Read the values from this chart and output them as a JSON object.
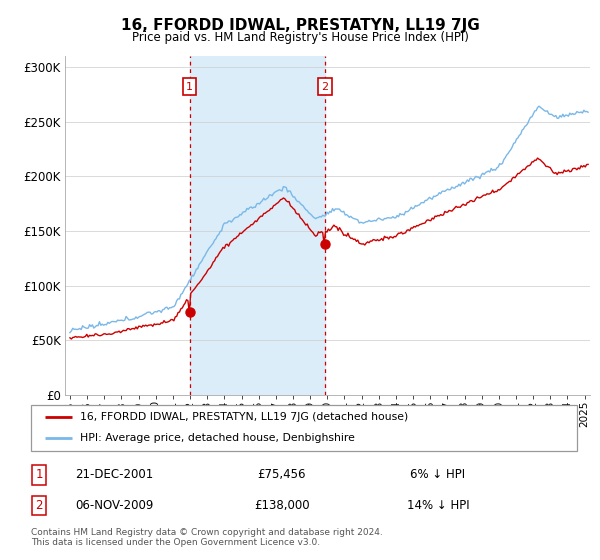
{
  "title": "16, FFORDD IDWAL, PRESTATYN, LL19 7JG",
  "subtitle": "Price paid vs. HM Land Registry's House Price Index (HPI)",
  "ylabel_ticks": [
    "£0",
    "£50K",
    "£100K",
    "£150K",
    "£200K",
    "£250K",
    "£300K"
  ],
  "ytick_values": [
    0,
    50000,
    100000,
    150000,
    200000,
    250000,
    300000
  ],
  "ylim": [
    0,
    310000
  ],
  "xlim_start": 1994.7,
  "xlim_end": 2025.3,
  "xtick_years": [
    1995,
    1996,
    1997,
    1998,
    1999,
    2000,
    2001,
    2002,
    2003,
    2004,
    2005,
    2006,
    2007,
    2008,
    2009,
    2010,
    2011,
    2012,
    2013,
    2014,
    2015,
    2016,
    2017,
    2018,
    2019,
    2020,
    2021,
    2022,
    2023,
    2024,
    2025
  ],
  "hpi_color": "#7ab8e8",
  "price_color": "#cc0000",
  "marker1_date": 2001.97,
  "marker1_price": 75456,
  "marker1_label": "1",
  "marker2_date": 2009.85,
  "marker2_price": 138000,
  "marker2_label": "2",
  "shaded_color": "#daedf8",
  "legend_line1": "16, FFORDD IDWAL, PRESTATYN, LL19 7JG (detached house)",
  "legend_line2": "HPI: Average price, detached house, Denbighshire",
  "table_row1_num": "1",
  "table_row1_date": "21-DEC-2001",
  "table_row1_price": "£75,456",
  "table_row1_hpi": "6% ↓ HPI",
  "table_row2_num": "2",
  "table_row2_date": "06-NOV-2009",
  "table_row2_price": "£138,000",
  "table_row2_hpi": "14% ↓ HPI",
  "footer": "Contains HM Land Registry data © Crown copyright and database right 2024.\nThis data is licensed under the Open Government Licence v3.0."
}
